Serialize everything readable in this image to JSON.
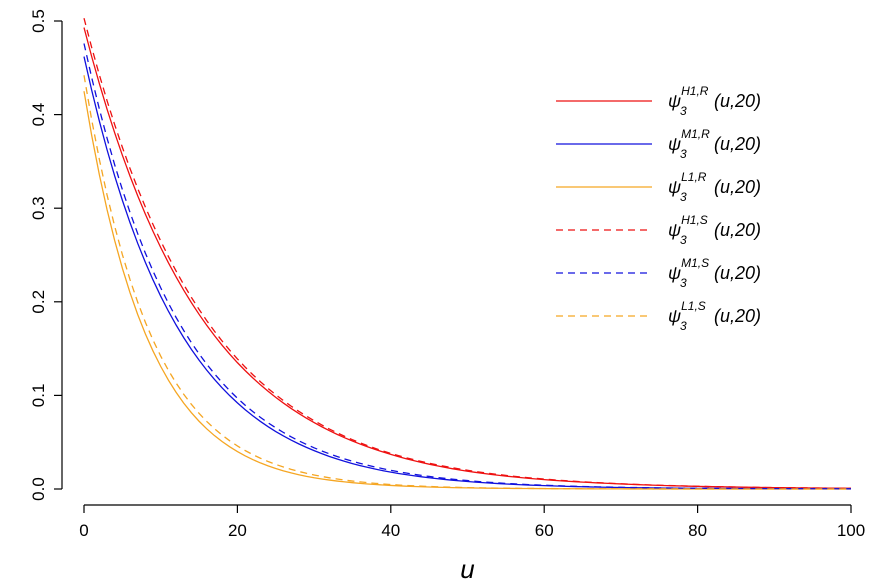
{
  "chart_data": {
    "type": "line",
    "title": "",
    "xlabel": "u",
    "ylabel": "",
    "xlim": [
      0,
      100
    ],
    "ylim": [
      0,
      0.5
    ],
    "x_ticks": [
      "0",
      "20",
      "40",
      "60",
      "80",
      "100"
    ],
    "y_ticks": [
      "0.0",
      "0.1",
      "0.2",
      "0.3",
      "0.4",
      "0.5"
    ],
    "grid": false,
    "legend_position": "top-right",
    "x": [
      0,
      10,
      20,
      30,
      40,
      50,
      60,
      70,
      80,
      90,
      100
    ],
    "series": [
      {
        "name": "ψ₃^{H1,R}(u,20)",
        "symbol": "ψ",
        "sub": "3",
        "sup": "H1,R",
        "arg": "(u,20)",
        "color": "#ee1111",
        "dash": "solid",
        "values": [
          0.493,
          0.258,
          0.135,
          0.071,
          0.037,
          0.019,
          0.01,
          0.0054,
          0.0028,
          0.0015,
          0.0008
        ]
      },
      {
        "name": "ψ₃^{M1,R}(u,20)",
        "symbol": "ψ",
        "sub": "3",
        "sup": "M1,R",
        "arg": "(u,20)",
        "color": "#1111dd",
        "dash": "solid",
        "values": [
          0.462,
          0.206,
          0.092,
          0.041,
          0.018,
          0.008,
          0.0036,
          0.0016,
          0.0007,
          0.0003,
          0.0001
        ]
      },
      {
        "name": "ψ₃^{L1,R}(u,20)",
        "symbol": "ψ",
        "sub": "3",
        "sup": "L1,R",
        "arg": "(u,20)",
        "color": "#f5a623",
        "dash": "solid",
        "values": [
          0.425,
          0.131,
          0.04,
          0.012,
          0.0038,
          0.0012,
          0.0004,
          0.0001,
          3e-05,
          1e-05,
          0.0
        ]
      },
      {
        "name": "ψ₃^{H1,S}(u,20)",
        "symbol": "ψ",
        "sub": "3",
        "sup": "H1,S",
        "arg": "(u,20)",
        "color": "#ee1111",
        "dash": "dashed",
        "values": [
          0.503,
          0.265,
          0.139,
          0.073,
          0.038,
          0.02,
          0.0106,
          0.0056,
          0.0029,
          0.0015,
          0.0008
        ]
      },
      {
        "name": "ψ₃^{M1,S}(u,20)",
        "symbol": "ψ",
        "sub": "3",
        "sup": "M1,S",
        "arg": "(u,20)",
        "color": "#1111dd",
        "dash": "dashed",
        "values": [
          0.476,
          0.215,
          0.097,
          0.044,
          0.02,
          0.009,
          0.004,
          0.0018,
          0.0008,
          0.0004,
          0.0002
        ]
      },
      {
        "name": "ψ₃^{L1,S}(u,20)",
        "symbol": "ψ",
        "sub": "3",
        "sup": "L1,S",
        "arg": "(u,20)",
        "color": "#f5a623",
        "dash": "dashed",
        "values": [
          0.442,
          0.142,
          0.046,
          0.015,
          0.0048,
          0.0015,
          0.0005,
          0.00016,
          5e-05,
          2e-05,
          0.0
        ]
      }
    ]
  }
}
